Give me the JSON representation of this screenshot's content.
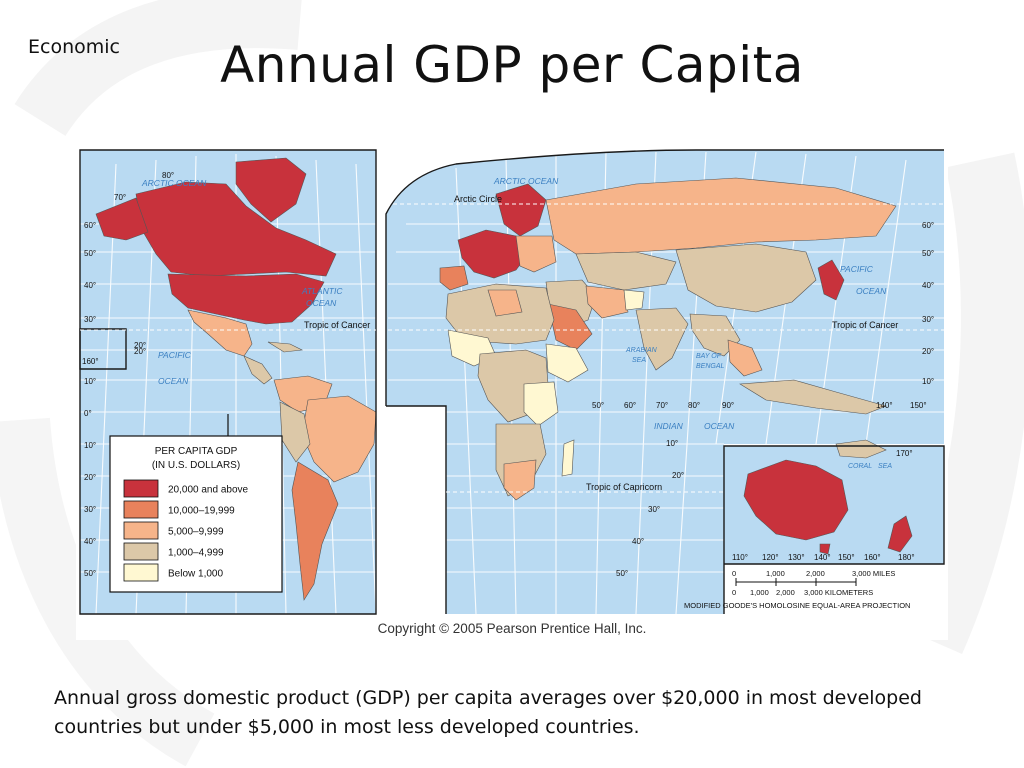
{
  "slide": {
    "corner_label": "Economic",
    "title": "Annual GDP per Capita",
    "caption": "Annual gross domestic product (GDP) per capita averages over $20,000 in most developed countries but under $5,000 in most less developed countries."
  },
  "map": {
    "copyright": "Copyright © 2005 Pearson Prentice Hall, Inc.",
    "projection_note": "MODIFIED GOODE'S HOMOLOSINE EQUAL-AREA PROJECTION",
    "colors": {
      "ocean": "#b9daf2",
      "grid": "#ffffff",
      "border": "#1a1a1a"
    },
    "legend": {
      "title_line1": "PER CAPITA GDP",
      "title_line2": "(IN U.S. DOLLARS)",
      "classes": [
        {
          "label": "20,000 and above",
          "color": "#c8323c"
        },
        {
          "label": "10,000–19,999",
          "color": "#e8825c"
        },
        {
          "label": "5,000–9,999",
          "color": "#f6b48a"
        },
        {
          "label": "1,000–4,999",
          "color": "#dcc8a8"
        },
        {
          "label": "Below 1,000",
          "color": "#fff8d2"
        }
      ]
    },
    "water_labels": {
      "arctic_ocean": "ARCTIC OCEAN",
      "atlantic_ocean_1": "ATLANTIC",
      "atlantic_ocean_2": "OCEAN",
      "pacific_ocean_1": "PACIFIC",
      "pacific_ocean_2": "OCEAN",
      "indian_ocean_1": "INDIAN",
      "indian_ocean_2": "OCEAN",
      "arabian_sea_1": "ARABIAN",
      "arabian_sea_2": "SEA",
      "bay_of_bengal_1": "BAY OF",
      "bay_of_bengal_2": "BENGAL",
      "coral_sea_1": "CORAL",
      "coral_sea_2": "SEA"
    },
    "lines": {
      "arctic_circle": "Arctic Circle",
      "tropic_of_cancer": "Tropic of Cancer",
      "tropic_of_capricorn": "Tropic of Capricorn"
    },
    "graticule": {
      "lat_left": [
        "70°",
        "60°",
        "50°",
        "40°",
        "30°",
        "20°",
        "10°",
        "0°",
        "10°",
        "20°",
        "30°",
        "40°",
        "50°"
      ],
      "lat_right": [
        "60°",
        "50°",
        "40°",
        "30°",
        "20°",
        "10°",
        "10°",
        "20°",
        "30°",
        "40°",
        "50°"
      ],
      "lon_top": [
        "80°",
        "160°",
        "20°",
        "50°",
        "60°",
        "70°",
        "80°",
        "90°",
        "140°",
        "150°",
        "110°",
        "120°",
        "130°",
        "140°",
        "150°",
        "160°",
        "170°",
        "180°"
      ]
    },
    "scale_bar": {
      "miles": [
        "0",
        "1,000",
        "2,000",
        "3,000 MILES"
      ],
      "km": [
        "0",
        "1,000",
        "2,000",
        "3,000 KILOMETERS"
      ]
    }
  }
}
